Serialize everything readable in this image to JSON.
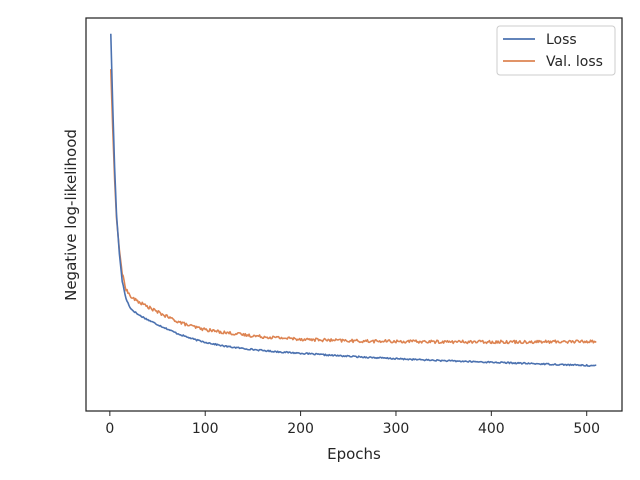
{
  "chart_data": {
    "type": "line",
    "title": "",
    "xlabel": "Epochs",
    "ylabel": "Negative log-likelihood",
    "xlim": [
      -25,
      537
    ],
    "ylim": [
      0.0,
      1.0
    ],
    "x_ticks": [
      0,
      100,
      200,
      300,
      400,
      500
    ],
    "x_tick_labels": [
      "0",
      "100",
      "200",
      "300",
      "400",
      "500"
    ],
    "y_ticks_visible": false,
    "grid": false,
    "legend_position": "top-right",
    "series": [
      {
        "name": "Loss",
        "color": "#4c72b0",
        "keypoints": [
          [
            1,
            0.96
          ],
          [
            3,
            0.78
          ],
          [
            5,
            0.62
          ],
          [
            7,
            0.5
          ],
          [
            10,
            0.4
          ],
          [
            13,
            0.33
          ],
          [
            17,
            0.285
          ],
          [
            22,
            0.26
          ],
          [
            30,
            0.245
          ],
          [
            40,
            0.232
          ],
          [
            50,
            0.22
          ],
          [
            60,
            0.209
          ],
          [
            70,
            0.198
          ],
          [
            80,
            0.189
          ],
          [
            90,
            0.181
          ],
          [
            100,
            0.175
          ],
          [
            120,
            0.165
          ],
          [
            140,
            0.159
          ],
          [
            160,
            0.154
          ],
          [
            180,
            0.15
          ],
          [
            200,
            0.147
          ],
          [
            230,
            0.142
          ],
          [
            260,
            0.138
          ],
          [
            300,
            0.133
          ],
          [
            350,
            0.128
          ],
          [
            400,
            0.124
          ],
          [
            450,
            0.12
          ],
          [
            500,
            0.116
          ],
          [
            510,
            0.115
          ]
        ],
        "noise": 0.0018
      },
      {
        "name": "Val. loss",
        "color": "#dd8452",
        "keypoints": [
          [
            1,
            0.87
          ],
          [
            3,
            0.72
          ],
          [
            5,
            0.59
          ],
          [
            7,
            0.49
          ],
          [
            10,
            0.41
          ],
          [
            13,
            0.35
          ],
          [
            17,
            0.31
          ],
          [
            22,
            0.29
          ],
          [
            30,
            0.278
          ],
          [
            40,
            0.265
          ],
          [
            50,
            0.252
          ],
          [
            60,
            0.24
          ],
          [
            70,
            0.229
          ],
          [
            80,
            0.22
          ],
          [
            90,
            0.213
          ],
          [
            100,
            0.207
          ],
          [
            120,
            0.2
          ],
          [
            140,
            0.194
          ],
          [
            160,
            0.189
          ],
          [
            180,
            0.186
          ],
          [
            200,
            0.183
          ],
          [
            230,
            0.18
          ],
          [
            260,
            0.178
          ],
          [
            300,
            0.177
          ],
          [
            350,
            0.176
          ],
          [
            400,
            0.176
          ],
          [
            450,
            0.176
          ],
          [
            500,
            0.177
          ],
          [
            510,
            0.177
          ]
        ],
        "noise": 0.004
      }
    ]
  }
}
